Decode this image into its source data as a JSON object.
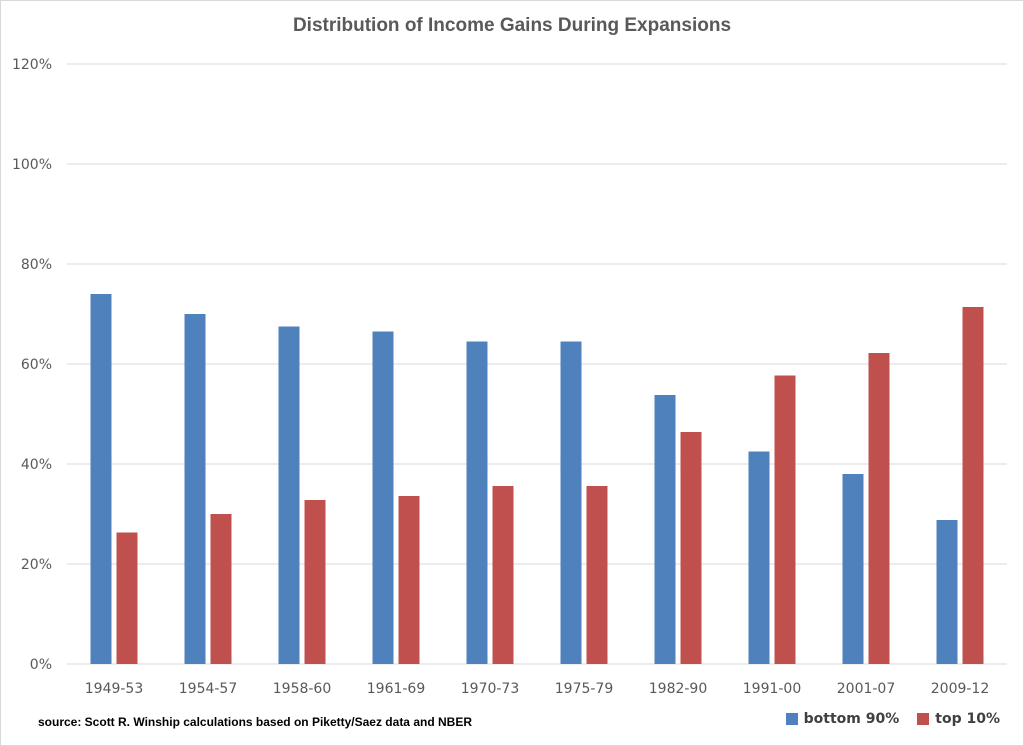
{
  "chart_data": {
    "type": "bar",
    "title": "Distribution of Income Gains During Expansions",
    "xlabel": "",
    "ylabel": "",
    "categories": [
      "1949-53",
      "1954-57",
      "1958-60",
      "1961-69",
      "1970-73",
      "1975-79",
      "1982-90",
      "1991-00",
      "2001-07",
      "2009-12"
    ],
    "series": [
      {
        "name": "bottom 90%",
        "color": "#4f81bd",
        "values": [
          74,
          70,
          67.5,
          66.5,
          64.5,
          64.5,
          53.8,
          42.5,
          38,
          28.8
        ]
      },
      {
        "name": "top 10%",
        "color": "#c0504d",
        "values": [
          26.3,
          30,
          32.8,
          33.6,
          35.6,
          35.6,
          46.4,
          57.7,
          62.2,
          71.4
        ]
      }
    ],
    "ylim": [
      0,
      120
    ],
    "yticks": [
      0,
      20,
      40,
      60,
      80,
      100,
      120
    ],
    "ytick_labels": [
      "0%",
      "20%",
      "40%",
      "60%",
      "80%",
      "100%",
      "120%"
    ],
    "grid": true,
    "gridline_color": "#d9d9d9",
    "legend_position": "bottom-right",
    "source_note": "source: Scott R. Winship calculations based on Piketty/Saez data and NBER"
  }
}
